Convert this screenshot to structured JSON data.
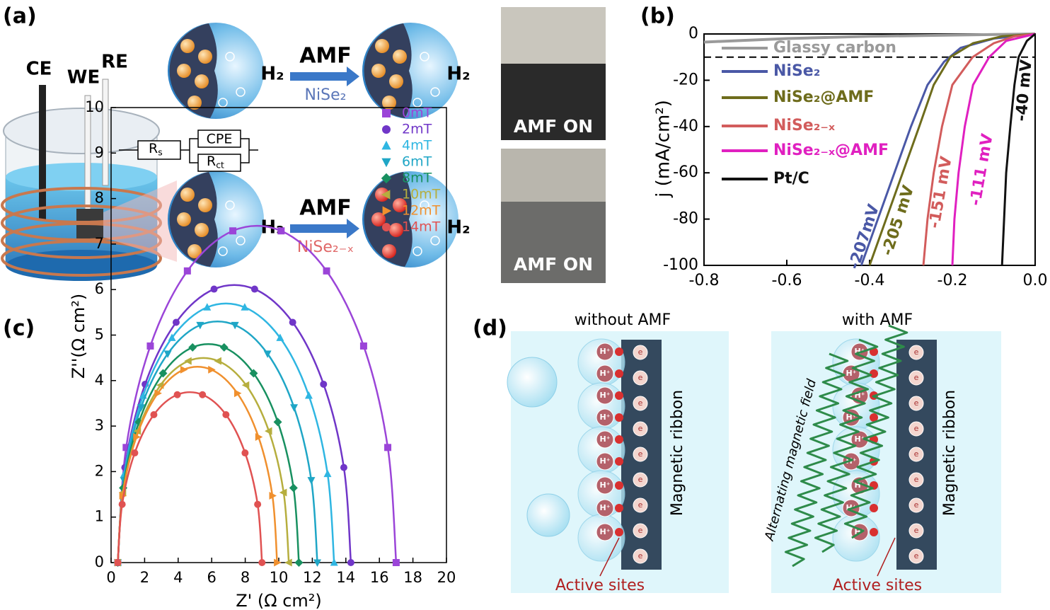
{
  "panels": {
    "a": {
      "label": "(a)",
      "electrodes": [
        "CE",
        "WE",
        "RE"
      ],
      "field": "AMF",
      "product": "H₂",
      "materials": [
        "NiSe₂",
        "NiSe₂₋ₓ"
      ],
      "photo_caption": "AMF ON"
    },
    "d": {
      "label": "(d)",
      "left_title": "without AMF",
      "right_title": "with AMF",
      "ribbon": "Magnetic ribbon",
      "sites": "Active sites",
      "field_label": "Alternating magnetic field",
      "ion": "H⁺",
      "electron": "e"
    }
  },
  "chart_data": [
    {
      "type": "line",
      "panel_label": "(b)",
      "ylabel": "j (mA/cm²)",
      "xlim": [
        -0.8,
        0
      ],
      "ylim": [
        -100,
        0
      ],
      "xticks": [
        -0.8,
        -0.6,
        -0.4,
        -0.2,
        {
          "value": 0,
          "label": "0.0"
        }
      ],
      "yticks": [
        -100,
        -80,
        -60,
        -40,
        -20,
        0
      ],
      "reference_line": -10,
      "annotations": [
        "-207mV",
        "-205 mV",
        "-151 mV",
        "-111 mV",
        "-40 mV"
      ],
      "series": [
        {
          "name": "Glassy carbon",
          "color": "#9a9a9a",
          "x": [
            -0.8,
            -0.6,
            -0.4,
            -0.2,
            0
          ],
          "values": [
            -3.5,
            -2,
            -1,
            -0.5,
            0
          ]
        },
        {
          "name": "NiSe₂",
          "color": "#4a58a6",
          "x": [
            -0.42,
            -0.38,
            -0.34,
            -0.3,
            -0.26,
            -0.22,
            -0.18,
            -0.1,
            0
          ],
          "values": [
            -100,
            -80,
            -60,
            -40,
            -22,
            -12,
            -6,
            -2,
            0
          ]
        },
        {
          "name": "NiSe₂@AMF",
          "color": "#6e6c1c",
          "x": [
            -0.4,
            -0.36,
            -0.32,
            -0.28,
            -0.245,
            -0.205,
            -0.15,
            -0.08,
            0
          ],
          "values": [
            -100,
            -80,
            -60,
            -40,
            -22,
            -10,
            -4,
            -1,
            0
          ]
        },
        {
          "name": "NiSe₂₋ₓ",
          "color": "#d25c5c",
          "x": [
            -0.27,
            -0.26,
            -0.245,
            -0.225,
            -0.2,
            -0.151,
            -0.1,
            -0.05,
            0
          ],
          "values": [
            -100,
            -80,
            -60,
            -40,
            -22,
            -10,
            -4,
            -1,
            0
          ]
        },
        {
          "name": "NiSe₂₋ₓ@AMF",
          "color": "#e020c0",
          "x": [
            -0.2,
            -0.195,
            -0.185,
            -0.17,
            -0.15,
            -0.111,
            -0.07,
            0
          ],
          "values": [
            -100,
            -80,
            -60,
            -40,
            -22,
            -10,
            -3,
            0
          ]
        },
        {
          "name": "Pt/C",
          "color": "#111111",
          "x": [
            -0.08,
            -0.075,
            -0.07,
            -0.06,
            -0.05,
            -0.04,
            -0.02,
            0
          ],
          "values": [
            -100,
            -80,
            -60,
            -40,
            -22,
            -10,
            -3,
            0
          ]
        }
      ]
    },
    {
      "type": "scatter",
      "panel_label": "(c)",
      "xlabel": "Z' (Ω cm²)",
      "ylabel": "Z''(Ω cm²)",
      "xlim": [
        0,
        20
      ],
      "ylim": [
        0,
        10
      ],
      "xticks": [
        0,
        2,
        4,
        6,
        8,
        10,
        12,
        14,
        16,
        18,
        20
      ],
      "yticks": [
        0,
        1,
        2,
        3,
        4,
        5,
        6,
        7,
        8,
        9,
        10
      ],
      "fit_lines": true,
      "circuit": [
        {
          "base": "R",
          "sub": "s"
        },
        "CPE",
        {
          "base": "R",
          "sub": "ct"
        }
      ],
      "series": [
        {
          "name": "0mT",
          "color": "#9b45d8",
          "marker": "square",
          "x": [
            0.4,
            0.9,
            2.34,
            4.55,
            7.26,
            10.14,
            12.85,
            15.06,
            16.5,
            17.0
          ],
          "values": [
            0,
            2.53,
            4.76,
            6.41,
            7.29,
            7.29,
            6.41,
            4.76,
            2.53,
            0
          ]
        },
        {
          "name": "2mT",
          "color": "#7036c8",
          "marker": "circle",
          "x": [
            0.4,
            0.82,
            2.03,
            3.88,
            6.14,
            8.56,
            10.83,
            12.67,
            13.88,
            14.3
          ],
          "values": [
            0,
            2.09,
            3.92,
            5.28,
            6.01,
            6.01,
            5.28,
            3.92,
            2.09,
            0
          ]
        },
        {
          "name": "4mT",
          "color": "#2fb6e2",
          "marker": "triangle-up",
          "x": [
            0.4,
            0.79,
            1.91,
            3.63,
            5.73,
            7.97,
            10.08,
            11.79,
            12.91,
            13.3
          ],
          "values": [
            0,
            1.95,
            3.67,
            4.94,
            5.61,
            5.61,
            4.94,
            3.67,
            1.95,
            0
          ]
        },
        {
          "name": "6mT",
          "color": "#1fa6c6",
          "marker": "triangle-down",
          "x": [
            0.4,
            0.76,
            1.79,
            3.38,
            5.31,
            7.39,
            9.33,
            10.91,
            11.94,
            12.3
          ],
          "values": [
            0,
            1.81,
            3.41,
            4.59,
            5.22,
            5.22,
            4.59,
            3.41,
            1.81,
            0
          ]
        },
        {
          "name": "8mT",
          "color": "#189060",
          "marker": "diamond",
          "x": [
            0.4,
            0.72,
            1.66,
            3.1,
            4.86,
            6.74,
            8.5,
            9.94,
            10.88,
            11.2
          ],
          "values": [
            0,
            1.64,
            3.09,
            4.16,
            4.73,
            4.73,
            4.16,
            3.09,
            1.64,
            0
          ]
        },
        {
          "name": "10mT",
          "color": "#b6ae3e",
          "marker": "triangle-left",
          "x": [
            0.4,
            0.71,
            1.59,
            2.95,
            4.61,
            6.39,
            8.05,
            9.41,
            10.29,
            10.6
          ],
          "values": [
            0,
            1.54,
            2.89,
            3.9,
            4.43,
            4.43,
            3.9,
            2.89,
            1.54,
            0
          ]
        },
        {
          "name": "12mT",
          "color": "#f0902e",
          "marker": "triangle-right",
          "x": [
            0.4,
            0.68,
            1.51,
            2.78,
            4.32,
            5.98,
            7.53,
            8.79,
            9.62,
            9.9
          ],
          "values": [
            0,
            1.47,
            2.76,
            3.72,
            4.24,
            4.24,
            3.72,
            2.76,
            1.47,
            0
          ]
        },
        {
          "name": "14mT",
          "color": "#e05252",
          "marker": "circle",
          "x": [
            0.4,
            0.66,
            1.41,
            2.55,
            3.95,
            5.45,
            6.85,
            7.99,
            8.74,
            9.0
          ],
          "values": [
            0,
            1.28,
            2.41,
            3.25,
            3.69,
            3.69,
            3.25,
            2.41,
            1.28,
            0
          ]
        }
      ]
    }
  ]
}
